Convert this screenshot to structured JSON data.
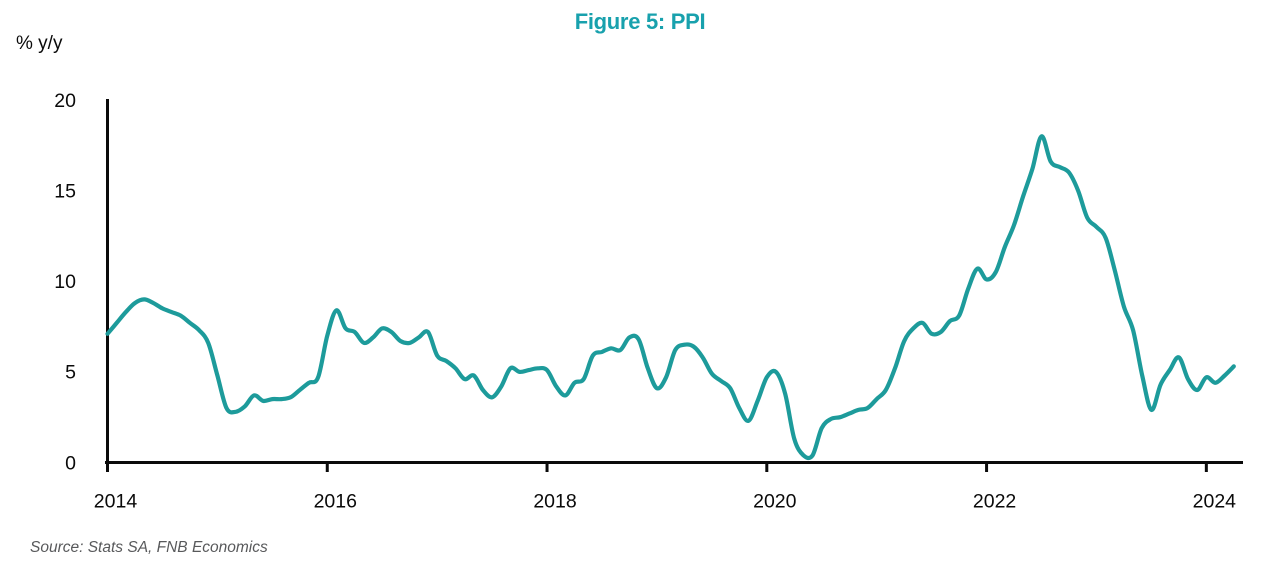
{
  "title": "Figure 5: PPI",
  "y_axis_unit": "% y/y",
  "source_note": "Source: Stats SA, FNB Economics",
  "colors": {
    "title_teal": "#18a1ad",
    "line_teal": "#1d9b9b",
    "axis_black": "#0a0a0a",
    "source_gray": "#58595b"
  },
  "chart_data": {
    "type": "line",
    "title": "Figure 5: PPI",
    "ylabel": "% y/y",
    "xlabel": "",
    "grid": false,
    "legend_position": "none",
    "ylim": [
      0,
      20
    ],
    "y_ticks": [
      "0",
      "5",
      "10",
      "15",
      "20"
    ],
    "x_ticks": [
      "2014",
      "2016",
      "2018",
      "2020",
      "2022",
      "2024"
    ],
    "x_range_months": "2014-01 to 2024-04",
    "series": [
      {
        "name": "PPI % y/y",
        "frequency": "monthly",
        "start": "2014-01",
        "values": [
          7.1,
          7.7,
          8.3,
          8.8,
          9.0,
          8.8,
          8.5,
          8.3,
          8.1,
          7.7,
          7.3,
          6.6,
          4.8,
          3.0,
          2.8,
          3.1,
          3.7,
          3.4,
          3.5,
          3.5,
          3.6,
          4.0,
          4.4,
          4.7,
          7.0,
          8.4,
          7.4,
          7.2,
          6.6,
          6.9,
          7.4,
          7.2,
          6.7,
          6.6,
          6.9,
          7.2,
          5.9,
          5.6,
          5.2,
          4.6,
          4.8,
          4.0,
          3.6,
          4.2,
          5.2,
          5.0,
          5.1,
          5.2,
          5.1,
          4.2,
          3.7,
          4.4,
          4.6,
          5.9,
          6.1,
          6.3,
          6.2,
          6.9,
          6.8,
          5.2,
          4.1,
          4.7,
          6.2,
          6.5,
          6.4,
          5.8,
          4.9,
          4.5,
          4.1,
          3.0,
          2.3,
          3.4,
          4.7,
          5.0,
          3.8,
          1.3,
          0.4,
          0.4,
          1.9,
          2.4,
          2.5,
          2.7,
          2.9,
          3.0,
          3.5,
          4.0,
          5.2,
          6.7,
          7.4,
          7.7,
          7.1,
          7.2,
          7.8,
          8.1,
          9.6,
          10.7,
          10.1,
          10.5,
          11.9,
          13.1,
          14.7,
          16.2,
          18.0,
          16.6,
          16.3,
          16.0,
          15.0,
          13.5,
          13.0,
          12.4,
          10.6,
          8.6,
          7.3,
          4.8,
          2.9,
          4.3,
          5.1,
          5.8,
          4.6,
          4.0,
          4.7,
          4.4,
          4.8,
          5.3
        ]
      }
    ]
  }
}
